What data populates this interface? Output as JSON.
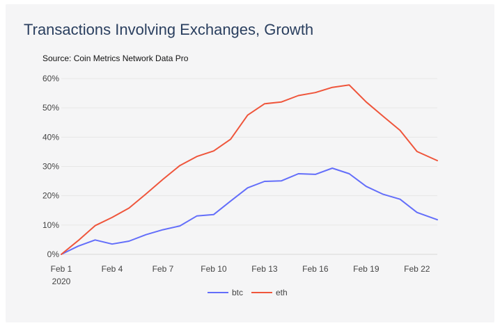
{
  "chart_data": {
    "type": "line",
    "title": "Transactions Involving Exchanges, Growth",
    "subtitle": "Source: Coin Metrics Network Data Pro",
    "xlabel": "",
    "ylabel": "",
    "x_tick_labels": [
      {
        "day": 1,
        "label": "Feb 1",
        "sublabel": "2020"
      },
      {
        "day": 4,
        "label": "Feb 4"
      },
      {
        "day": 7,
        "label": "Feb 7"
      },
      {
        "day": 10,
        "label": "Feb 10"
      },
      {
        "day": 13,
        "label": "Feb 13"
      },
      {
        "day": 16,
        "label": "Feb 16"
      },
      {
        "day": 19,
        "label": "Feb 19"
      },
      {
        "day": 22,
        "label": "Feb 22"
      }
    ],
    "y_ticks": [
      0,
      10,
      20,
      30,
      40,
      50,
      60
    ],
    "y_tick_suffix": "%",
    "xlim": [
      1,
      23.2
    ],
    "ylim": [
      0,
      60
    ],
    "grid": true,
    "legend_position": "bottom-center",
    "x": [
      1,
      2,
      3,
      4,
      5,
      6,
      7,
      8,
      9,
      10,
      11,
      12,
      13,
      14,
      15,
      16,
      17,
      18,
      19,
      20,
      21,
      22,
      23.2
    ],
    "series": [
      {
        "name": "btc",
        "color": "#636efa",
        "values": [
          0,
          2.8,
          4.9,
          3.5,
          4.5,
          6.7,
          8.4,
          9.7,
          13.1,
          13.6,
          18.2,
          22.7,
          24.9,
          25.1,
          27.5,
          27.3,
          29.4,
          27.5,
          23.2,
          20.5,
          18.8,
          14.3,
          11.8
        ]
      },
      {
        "name": "eth",
        "color": "#ef553b",
        "values": [
          0,
          4.7,
          9.8,
          12.6,
          15.8,
          20.6,
          25.6,
          30.3,
          33.4,
          35.3,
          39.3,
          47.5,
          51.4,
          52.0,
          54.2,
          55.2,
          57.0,
          57.8,
          52.0,
          47.1,
          42.3,
          35.1,
          32.0
        ]
      }
    ]
  }
}
